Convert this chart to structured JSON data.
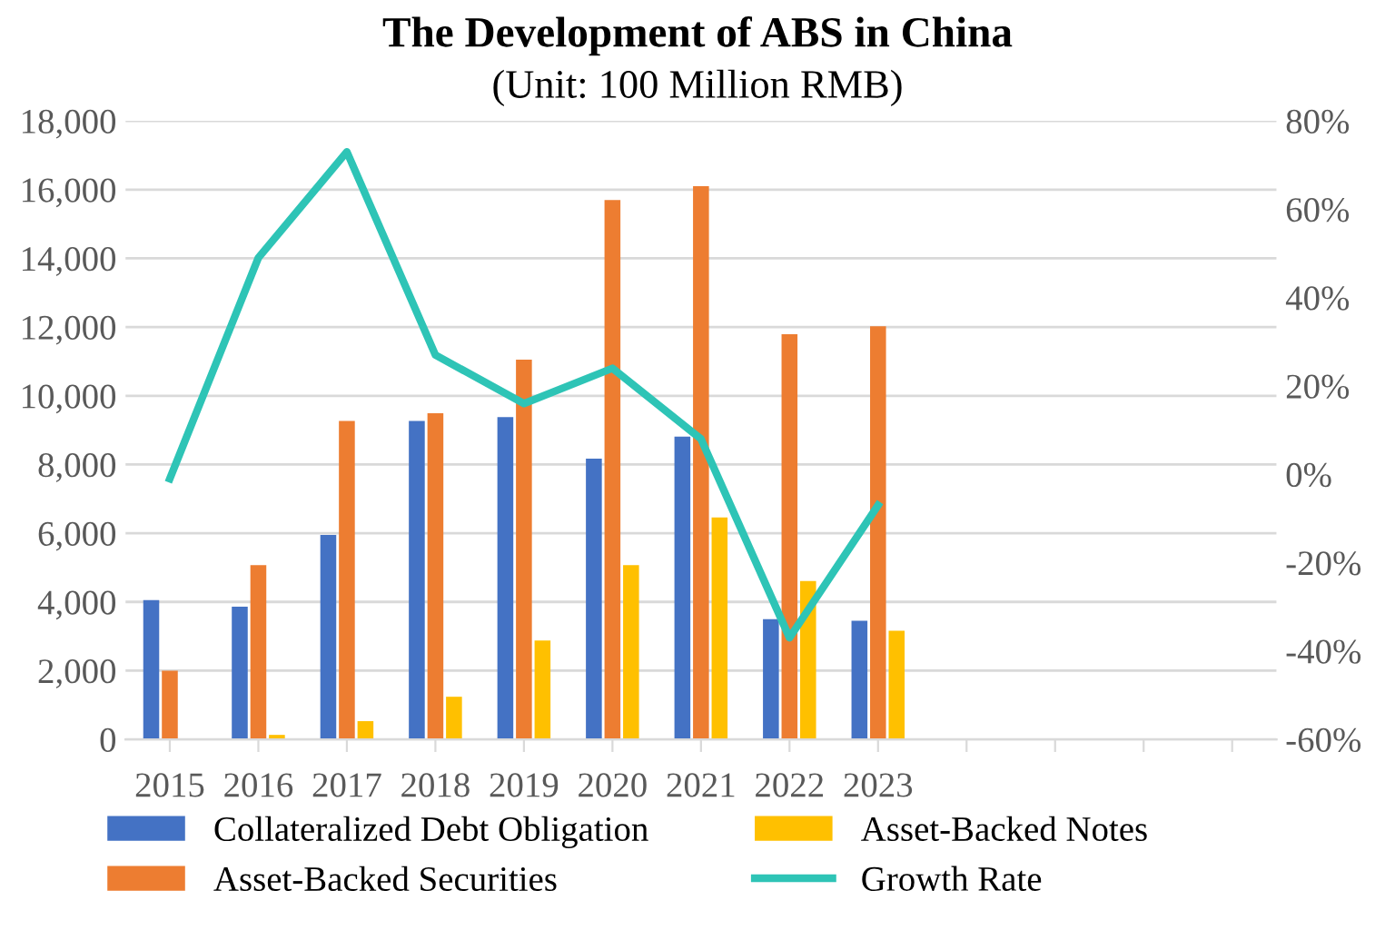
{
  "chart_data": {
    "type": "bar",
    "title": "The Development of ABS in China",
    "subtitle": "(Unit: 100 Million RMB)",
    "categories": [
      "2015",
      "2016",
      "2017",
      "2018",
      "2019",
      "2020",
      "2021",
      "2022",
      "2023",
      null,
      null,
      null,
      null
    ],
    "series": [
      {
        "name": "Collateralized Debt Obligation",
        "color": "#4472c4",
        "values": [
          4050,
          3860,
          5950,
          9270,
          9380,
          8170,
          8810,
          3500,
          3450,
          null,
          null,
          null,
          null
        ]
      },
      {
        "name": "Asset-Backed Securities",
        "color": "#ed7d31",
        "values": [
          2000,
          5070,
          9270,
          9490,
          11050,
          15700,
          16100,
          11790,
          12020,
          null,
          null,
          null,
          null
        ]
      },
      {
        "name": "Asset-Backed Notes",
        "color": "#ffc000",
        "values": [
          null,
          130,
          530,
          1240,
          2880,
          5070,
          6460,
          4610,
          3160,
          null,
          null,
          null,
          null
        ]
      },
      {
        "name": "Growth Rate",
        "type": "line",
        "axis": "y2",
        "color": "#2ec4b6",
        "values": [
          -1,
          49,
          73,
          27,
          16,
          24,
          8,
          -37,
          -7,
          null,
          null,
          null,
          null
        ]
      }
    ],
    "ylim": [
      0,
      18000
    ],
    "yticks": [
      {
        "value": 0,
        "label": "0"
      },
      {
        "value": 2000,
        "label": "2,000"
      },
      {
        "value": 4000,
        "label": "4,000"
      },
      {
        "value": 6000,
        "label": "6,000"
      },
      {
        "value": 8000,
        "label": "8,000"
      },
      {
        "value": 10000,
        "label": "10,000"
      },
      {
        "value": 12000,
        "label": "12,000"
      },
      {
        "value": 14000,
        "label": "14,000"
      },
      {
        "value": 16000,
        "label": "16,000"
      },
      {
        "value": 18000,
        "label": "18,000"
      }
    ],
    "y2lim": [
      -60,
      80
    ],
    "y2ticks": [
      {
        "value": -60,
        "label": "-60%"
      },
      {
        "value": -40,
        "label": "-40%"
      },
      {
        "value": -20,
        "label": "-20%"
      },
      {
        "value": 0,
        "label": "0%"
      },
      {
        "value": 20,
        "label": "20%"
      },
      {
        "value": 40,
        "label": "40%"
      },
      {
        "value": 60,
        "label": "60%"
      },
      {
        "value": 80,
        "label": "80%"
      }
    ],
    "grid": "y",
    "legend": "bottom",
    "marker": "none",
    "line_style": "solid"
  }
}
